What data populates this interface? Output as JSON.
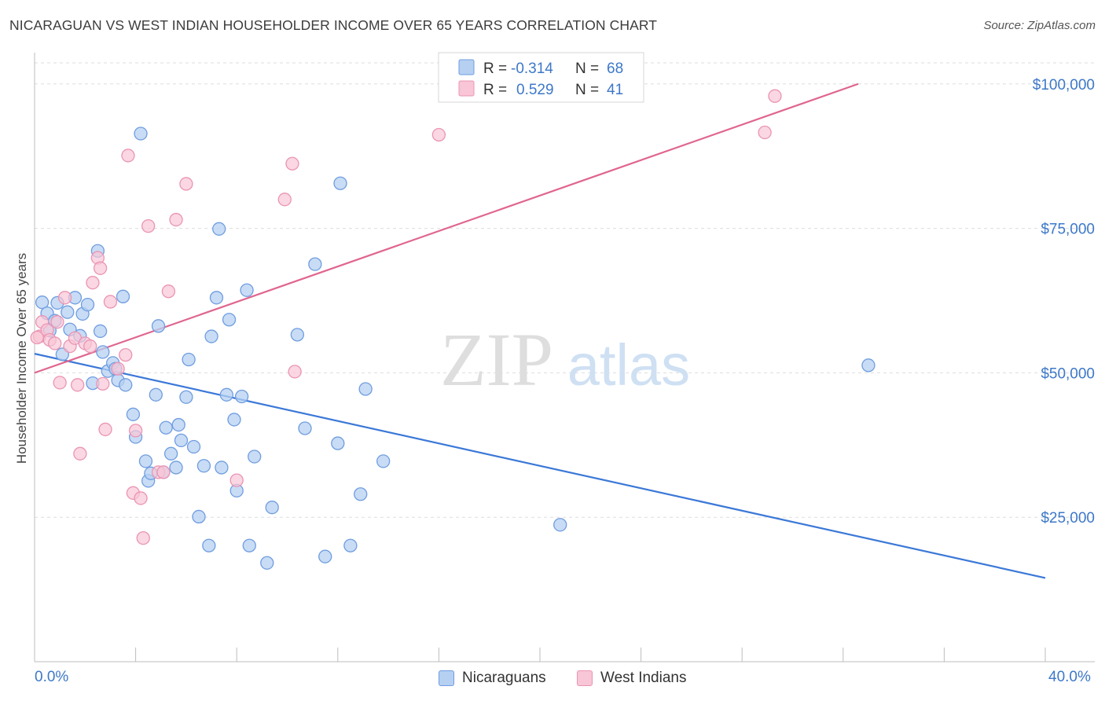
{
  "title": "NICARAGUAN VS WEST INDIAN HOUSEHOLDER INCOME OVER 65 YEARS CORRELATION CHART",
  "source": "Source: ZipAtlas.com",
  "watermark": {
    "zip": "ZIP",
    "atlas": "atlas"
  },
  "colors": {
    "blue": "#3b78d8",
    "blue_fill": "#b6d0f2",
    "blue_stroke": "#6f9de0",
    "pink": "#e0658f",
    "pink_fill": "#f8c6d6",
    "pink_stroke": "#eb94b3",
    "tick_text": "#3d78c9",
    "grid": "#dddddd"
  },
  "legend": {
    "rows": [
      {
        "r_label": "R =",
        "r_value": "-0.314",
        "n_label": "N =",
        "n_value": "68"
      },
      {
        "r_label": "R =",
        "r_value": "0.529",
        "n_label": "N =",
        "n_value": "41"
      }
    ]
  },
  "bottom_legend": [
    "Nicaraguans",
    "West Indians"
  ],
  "chart_data": {
    "type": "scatter",
    "title": "NICARAGUAN VS WEST INDIAN HOUSEHOLDER INCOME OVER 65 YEARS CORRELATION CHART",
    "xlabel": "",
    "ylabel": "Householder Income Over 65 years",
    "xlim": [
      0,
      40
    ],
    "ylim": [
      0,
      105000
    ],
    "x_tick_labels": [
      "0.0%",
      "40.0%"
    ],
    "y_ticks": [
      25000,
      50000,
      75000,
      100000
    ],
    "y_tick_labels": [
      "$25,000",
      "$50,000",
      "$75,000",
      "$100,000"
    ],
    "grid": true,
    "legend_position": "top-center",
    "series": [
      {
        "name": "Nicaraguans",
        "r": -0.314,
        "n": 68,
        "trend": {
          "x": [
            0,
            40
          ],
          "y": [
            53300,
            14500
          ]
        },
        "points": [
          [
            0.3,
            62200
          ],
          [
            0.5,
            60300
          ],
          [
            0.6,
            57300
          ],
          [
            0.8,
            59000
          ],
          [
            0.9,
            62100
          ],
          [
            1.1,
            53200
          ],
          [
            1.3,
            60500
          ],
          [
            1.4,
            57500
          ],
          [
            1.6,
            63000
          ],
          [
            1.8,
            56400
          ],
          [
            1.9,
            60200
          ],
          [
            2.1,
            61800
          ],
          [
            2.3,
            48200
          ],
          [
            2.5,
            71100
          ],
          [
            2.6,
            57200
          ],
          [
            2.7,
            53600
          ],
          [
            2.9,
            50300
          ],
          [
            3.1,
            51700
          ],
          [
            3.2,
            50700
          ],
          [
            3.3,
            48700
          ],
          [
            3.5,
            63200
          ],
          [
            3.6,
            47900
          ],
          [
            3.9,
            42800
          ],
          [
            4.0,
            38900
          ],
          [
            4.2,
            91400
          ],
          [
            4.4,
            34700
          ],
          [
            4.5,
            31300
          ],
          [
            4.6,
            32600
          ],
          [
            4.8,
            46200
          ],
          [
            4.9,
            58100
          ],
          [
            5.1,
            32800
          ],
          [
            5.2,
            40500
          ],
          [
            5.4,
            36000
          ],
          [
            5.6,
            33600
          ],
          [
            5.7,
            41000
          ],
          [
            5.8,
            38300
          ],
          [
            6.0,
            45800
          ],
          [
            6.1,
            52300
          ],
          [
            6.3,
            37200
          ],
          [
            6.5,
            25100
          ],
          [
            6.7,
            33900
          ],
          [
            6.9,
            20100
          ],
          [
            7.0,
            56300
          ],
          [
            7.2,
            63000
          ],
          [
            7.3,
            74900
          ],
          [
            7.4,
            33600
          ],
          [
            7.6,
            46200
          ],
          [
            7.7,
            59200
          ],
          [
            7.9,
            41900
          ],
          [
            8.0,
            29600
          ],
          [
            8.2,
            45900
          ],
          [
            8.4,
            64300
          ],
          [
            8.5,
            20100
          ],
          [
            8.7,
            35500
          ],
          [
            9.2,
            17100
          ],
          [
            9.4,
            26700
          ],
          [
            10.4,
            56600
          ],
          [
            10.7,
            40400
          ],
          [
            11.1,
            68800
          ],
          [
            11.5,
            18200
          ],
          [
            12.0,
            37800
          ],
          [
            12.1,
            82800
          ],
          [
            12.5,
            20100
          ],
          [
            12.9,
            29000
          ],
          [
            13.1,
            47200
          ],
          [
            13.8,
            34700
          ],
          [
            20.8,
            23700
          ],
          [
            33.0,
            51300
          ]
        ]
      },
      {
        "name": "West Indians",
        "r": 0.529,
        "n": 41,
        "trend": {
          "x": [
            0,
            32.6
          ],
          "y": [
            50000,
            100000
          ]
        },
        "points": [
          [
            0.2,
            56300
          ],
          [
            0.3,
            58800
          ],
          [
            0.5,
            57400
          ],
          [
            0.6,
            55700
          ],
          [
            0.8,
            55100
          ],
          [
            0.9,
            58800
          ],
          [
            1.0,
            48300
          ],
          [
            1.2,
            63000
          ],
          [
            1.4,
            54600
          ],
          [
            1.6,
            56000
          ],
          [
            1.7,
            47900
          ],
          [
            1.8,
            36000
          ],
          [
            2.0,
            55100
          ],
          [
            2.2,
            54600
          ],
          [
            2.3,
            65600
          ],
          [
            2.5,
            69900
          ],
          [
            2.6,
            68100
          ],
          [
            2.7,
            48100
          ],
          [
            2.8,
            40200
          ],
          [
            3.0,
            62300
          ],
          [
            3.3,
            50700
          ],
          [
            3.6,
            53100
          ],
          [
            3.7,
            87600
          ],
          [
            3.9,
            29200
          ],
          [
            4.0,
            40000
          ],
          [
            4.2,
            28300
          ],
          [
            4.3,
            21400
          ],
          [
            4.5,
            75400
          ],
          [
            4.9,
            32800
          ],
          [
            5.1,
            32800
          ],
          [
            5.3,
            64100
          ],
          [
            5.6,
            76500
          ],
          [
            6.0,
            82700
          ],
          [
            8.0,
            31400
          ],
          [
            9.9,
            80000
          ],
          [
            10.2,
            86200
          ],
          [
            10.3,
            50200
          ],
          [
            16.0,
            91200
          ],
          [
            28.9,
            91600
          ],
          [
            29.3,
            97900
          ],
          [
            0.1,
            56100
          ]
        ]
      }
    ]
  }
}
